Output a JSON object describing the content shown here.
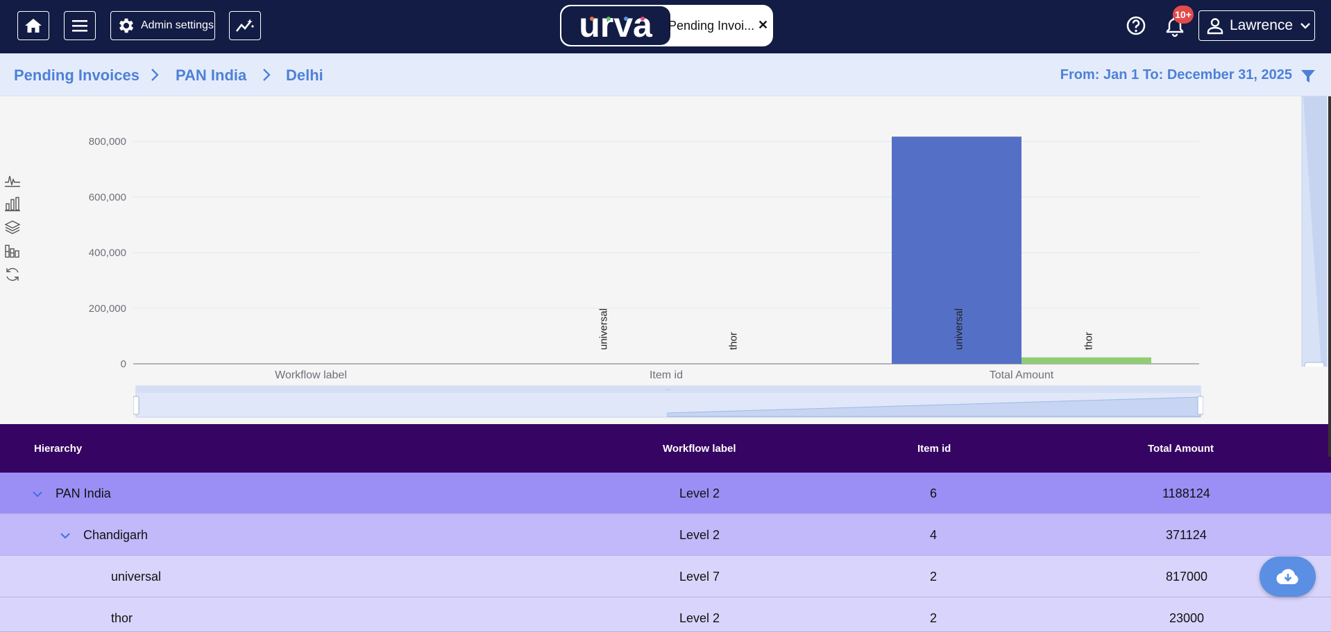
{
  "header": {
    "admin_label": "Admin settings",
    "logo_text": "urva",
    "tab_label": "Pending Invoi...",
    "tab_close": "✕",
    "notification_badge": "10+",
    "user_name": "Lawrence",
    "icons": [
      "home-icon",
      "menu-icon",
      "gear-icon",
      "analytics-icon",
      "help-icon",
      "bell-icon",
      "user-icon",
      "chevron-down-icon"
    ]
  },
  "breadcrumb": {
    "items": [
      "Pending Invoices",
      "PAN India",
      "Delhi"
    ],
    "date_range": "From: Jan 1 To: December 31, 2025"
  },
  "chart_data": {
    "type": "bar",
    "categories": [
      "Workflow label",
      "Item id",
      "Total Amount"
    ],
    "series": [
      {
        "name": "universal",
        "values": [
          0,
          2,
          817000
        ],
        "color": "#5470c6"
      },
      {
        "name": "thor",
        "values": [
          0,
          2,
          23000
        ],
        "color": "#91cc75"
      }
    ],
    "ylim": [
      0,
      800000
    ],
    "yticks": [
      "0",
      "200,000",
      "400,000",
      "600,000",
      "800,000"
    ],
    "grid": true
  },
  "table": {
    "headers": [
      "Hierarchy",
      "Workflow label",
      "Item id",
      "Total Amount"
    ],
    "rows": [
      {
        "name": "PAN India",
        "workflow": "Level 2",
        "item_id": "6",
        "total": "1188124"
      },
      {
        "name": "Chandigarh",
        "workflow": "Level 2",
        "item_id": "4",
        "total": "371124"
      },
      {
        "name": "universal",
        "workflow": "Level 7",
        "item_id": "2",
        "total": "817000"
      },
      {
        "name": "thor",
        "workflow": "Level 2",
        "item_id": "2",
        "total": "23000"
      }
    ]
  },
  "colors": {
    "topbar": "#131c44",
    "accent": "#4e80d8",
    "table_header": "#360563",
    "row_level0": "#9b8ff5",
    "row_level1": "#c1b9fa",
    "row_level2": "#d9d4fb",
    "badge": "#e24b4b"
  }
}
